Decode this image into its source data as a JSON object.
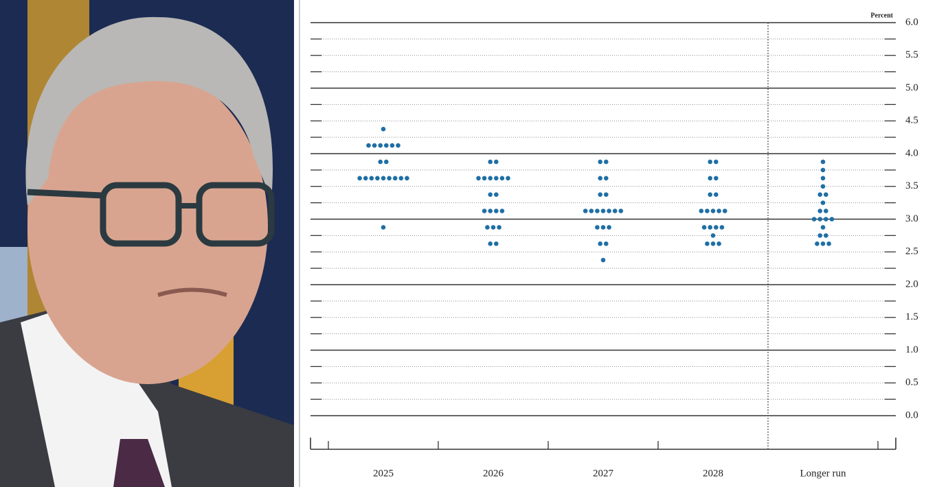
{
  "chart_data": {
    "type": "dot",
    "unit_label": "Percent",
    "categories": [
      "2025",
      "2026",
      "2027",
      "2028",
      "Longer run"
    ],
    "color": "#1f6fa5",
    "dots": [
      [
        {
          "rate": 4.375,
          "count": 1
        },
        {
          "rate": 4.125,
          "count": 6
        },
        {
          "rate": 3.875,
          "count": 2
        },
        {
          "rate": 3.625,
          "count": 9
        },
        {
          "rate": 2.875,
          "count": 1
        }
      ],
      [
        {
          "rate": 3.875,
          "count": 2
        },
        {
          "rate": 3.625,
          "count": 6
        },
        {
          "rate": 3.375,
          "count": 2
        },
        {
          "rate": 3.125,
          "count": 4
        },
        {
          "rate": 2.875,
          "count": 3
        },
        {
          "rate": 2.625,
          "count": 2
        }
      ],
      [
        {
          "rate": 3.875,
          "count": 2
        },
        {
          "rate": 3.625,
          "count": 2
        },
        {
          "rate": 3.375,
          "count": 2
        },
        {
          "rate": 3.125,
          "count": 7
        },
        {
          "rate": 2.875,
          "count": 3
        },
        {
          "rate": 2.625,
          "count": 2
        },
        {
          "rate": 2.375,
          "count": 1
        }
      ],
      [
        {
          "rate": 3.875,
          "count": 2
        },
        {
          "rate": 3.625,
          "count": 2
        },
        {
          "rate": 3.375,
          "count": 2
        },
        {
          "rate": 3.125,
          "count": 5
        },
        {
          "rate": 2.875,
          "count": 4
        },
        {
          "rate": 2.75,
          "count": 1
        },
        {
          "rate": 2.625,
          "count": 3
        }
      ],
      [
        {
          "rate": 3.875,
          "count": 1
        },
        {
          "rate": 3.75,
          "count": 1
        },
        {
          "rate": 3.625,
          "count": 1
        },
        {
          "rate": 3.5,
          "count": 1
        },
        {
          "rate": 3.375,
          "count": 2
        },
        {
          "rate": 3.25,
          "count": 1
        },
        {
          "rate": 3.125,
          "count": 2
        },
        {
          "rate": 3.0,
          "count": 4
        },
        {
          "rate": 2.875,
          "count": 1
        },
        {
          "rate": 2.75,
          "count": 2
        },
        {
          "rate": 2.625,
          "count": 3
        }
      ]
    ],
    "ylim": [
      0,
      6
    ],
    "yticks": [
      {
        "value": 0,
        "label": "0.0"
      },
      0.5,
      {
        "value": 1,
        "label": "1.0"
      },
      1.5,
      {
        "value": 2,
        "label": "2.0"
      },
      2.5,
      {
        "value": 3,
        "label": "3.0"
      },
      3.5,
      {
        "value": 4,
        "label": "4.0"
      },
      4.5,
      {
        "value": 5,
        "label": "5.0"
      },
      5.5,
      {
        "value": 6,
        "label": "6.0"
      }
    ],
    "minor_yticks": [
      0.25,
      0.75,
      1.25,
      1.75,
      2.25,
      2.75,
      3.25,
      3.75,
      4.25,
      4.75,
      5.25,
      5.75
    ]
  }
}
